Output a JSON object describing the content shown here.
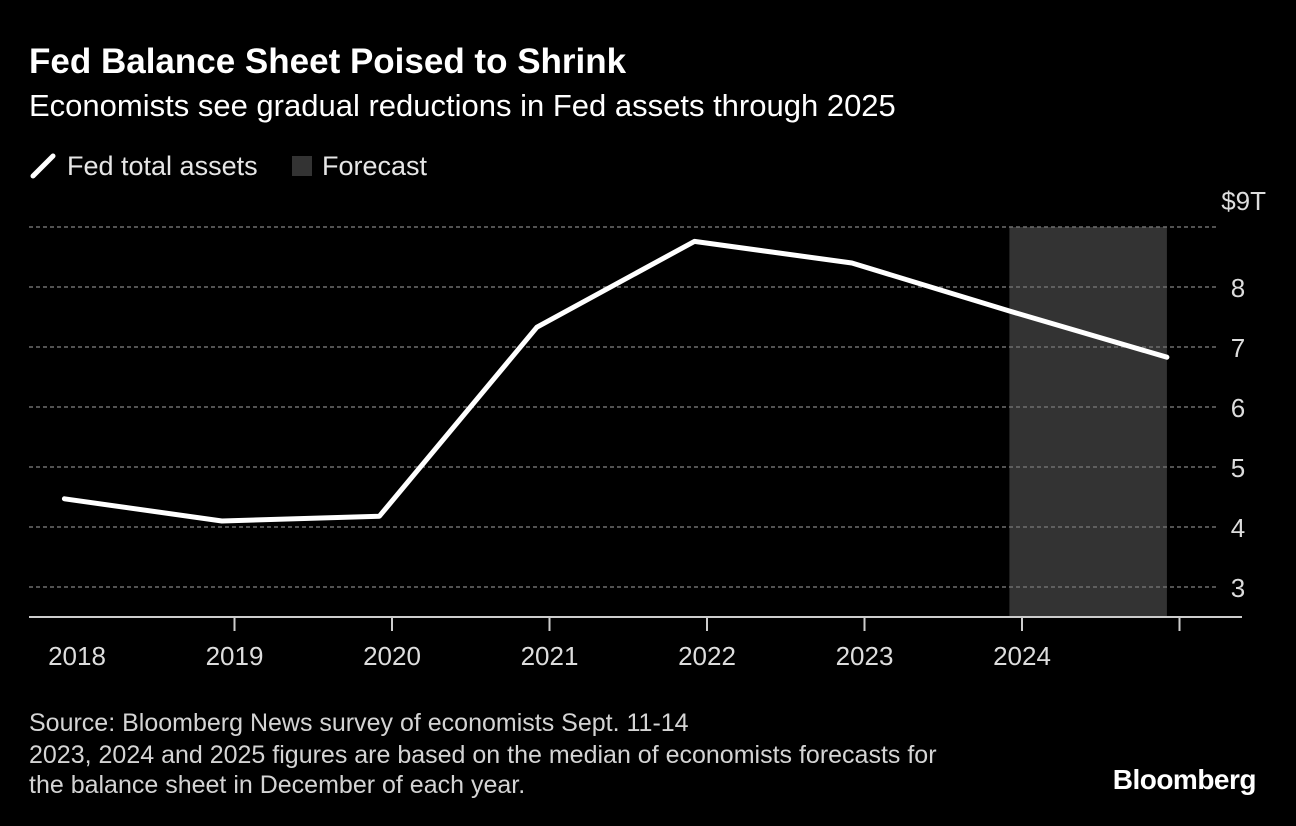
{
  "chart_data": {
    "type": "line",
    "title": "Fed Balance Sheet Poised to Shrink",
    "subtitle": "Economists see gradual reductions in Fed assets through 2025",
    "legend": [
      {
        "label": "Fed total assets",
        "kind": "line",
        "color": "#ffffff"
      },
      {
        "label": "Forecast",
        "kind": "box",
        "color": "#333333"
      }
    ],
    "x_start": 2018,
    "x_end": 2025,
    "x_ticks": [
      2018,
      2019,
      2020,
      2021,
      2022,
      2023,
      2024
    ],
    "x_tick_labels": [
      "2018",
      "2019",
      "2020",
      "2021",
      "2022",
      "2023",
      "2024"
    ],
    "y_unit_label": "$9T",
    "y_ticks": [
      3,
      4,
      5,
      6,
      7,
      8
    ],
    "y_tick_labels": [
      "3",
      "4",
      "5",
      "6",
      "7",
      "8"
    ],
    "ylim": [
      2.5,
      9
    ],
    "series": [
      {
        "name": "Fed total assets",
        "x": [
          2017.92,
          2018.92,
          2019.92,
          2020.92,
          2021.92,
          2022.92,
          2023.92,
          2024.92
        ],
        "values": [
          4.47,
          4.1,
          4.18,
          7.33,
          8.76,
          8.4,
          7.6,
          6.83
        ]
      }
    ],
    "forecast_range": [
      2023.92,
      2024.92
    ],
    "grid": true,
    "legend_position": "top-left"
  },
  "footer": {
    "source": "Source: Bloomberg News survey of economists Sept. 11-14",
    "note_line1": "2023, 2024 and 2025 figures are based on the median of economists forecasts for",
    "note_line2": "the balance sheet in December of each year.",
    "brand": "Bloomberg"
  },
  "colors": {
    "background": "#000000",
    "line": "#ffffff",
    "forecast": "#333333",
    "grid": "#6e6e6e",
    "axis": "#cccccc"
  }
}
